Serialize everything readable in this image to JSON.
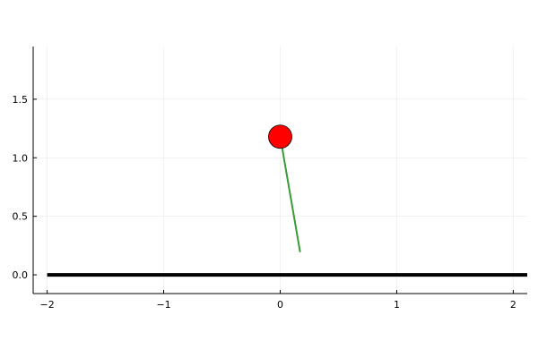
{
  "chart_data": {
    "type": "scatter",
    "title": "",
    "xlabel": "",
    "ylabel": "",
    "xlim": [
      -2.12,
      2.12
    ],
    "ylim": [
      -0.16,
      1.95
    ],
    "x_ticks": [
      -2,
      -1,
      0,
      1,
      2
    ],
    "x_tick_labels": [
      "−2",
      "−1",
      "0",
      "1",
      "2"
    ],
    "y_ticks": [
      0.0,
      0.5,
      1.0,
      1.5
    ],
    "y_tick_labels": [
      "0.0",
      "0.5",
      "1.0",
      "1.5"
    ],
    "grid": true,
    "legend": "none",
    "ground_line": {
      "x": [
        -2,
        2.12
      ],
      "y": [
        0,
        0
      ],
      "color": "#000000"
    },
    "pendulum_rod": {
      "x": [
        0.0,
        0.17
      ],
      "y": [
        1.18,
        0.2
      ],
      "color": "#3a9a3a"
    },
    "bob": {
      "x": 0.0,
      "y": 1.18,
      "color": "#ff0000",
      "edge_color": "#000000"
    }
  }
}
